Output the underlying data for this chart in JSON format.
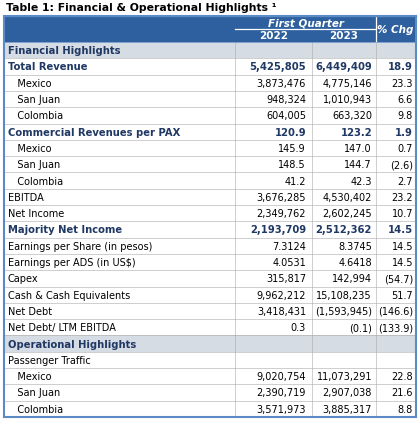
{
  "title": "Table 1: Financial & Operational Highlights ¹",
  "header_main": "First Quarter",
  "col1": "2022",
  "col2": "2023",
  "col3": "% Chg",
  "header_bg": "#2E5F9E",
  "header_text": "#FFFFFF",
  "section_bg": "#D6DCE4",
  "section_text": "#1F3864",
  "bold_row_text": "#1F3864",
  "normal_row_text": "#000000",
  "border_color": "#5B8AC5",
  "rows": [
    {
      "label": "Financial Highlights",
      "v2022": "",
      "v2023": "",
      "vchg": "",
      "type": "section"
    },
    {
      "label": "Total Revenue",
      "v2022": "5,425,805",
      "v2023": "6,449,409",
      "vchg": "18.9",
      "type": "bold"
    },
    {
      "label": "   Mexico",
      "v2022": "3,873,476",
      "v2023": "4,775,146",
      "vchg": "23.3",
      "type": "normal"
    },
    {
      "label": "   San Juan",
      "v2022": "948,324",
      "v2023": "1,010,943",
      "vchg": "6.6",
      "type": "normal"
    },
    {
      "label": "   Colombia",
      "v2022": "604,005",
      "v2023": "663,320",
      "vchg": "9.8",
      "type": "normal"
    },
    {
      "label": "Commercial Revenues per PAX",
      "v2022": "120.9",
      "v2023": "123.2",
      "vchg": "1.9",
      "type": "bold"
    },
    {
      "label": "   Mexico",
      "v2022": "145.9",
      "v2023": "147.0",
      "vchg": "0.7",
      "type": "normal"
    },
    {
      "label": "   San Juan",
      "v2022": "148.5",
      "v2023": "144.7",
      "vchg": "(2.6)",
      "type": "normal"
    },
    {
      "label": "   Colombia",
      "v2022": "41.2",
      "v2023": "42.3",
      "vchg": "2.7",
      "type": "normal"
    },
    {
      "label": "EBITDA",
      "v2022": "3,676,285",
      "v2023": "4,530,402",
      "vchg": "23.2",
      "type": "normal"
    },
    {
      "label": "Net Income",
      "v2022": "2,349,762",
      "v2023": "2,602,245",
      "vchg": "10.7",
      "type": "normal"
    },
    {
      "label": "Majority Net Income",
      "v2022": "2,193,709",
      "v2023": "2,512,362",
      "vchg": "14.5",
      "type": "bold"
    },
    {
      "label": "Earnings per Share (in pesos)",
      "v2022": "7.3124",
      "v2023": "8.3745",
      "vchg": "14.5",
      "type": "normal"
    },
    {
      "label": "Earnings per ADS (in US$)",
      "v2022": "4.0531",
      "v2023": "4.6418",
      "vchg": "14.5",
      "type": "normal"
    },
    {
      "label": "Capex",
      "v2022": "315,817",
      "v2023": "142,994",
      "vchg": "(54.7)",
      "type": "normal"
    },
    {
      "label": "Cash & Cash Equivalents",
      "v2022": "9,962,212",
      "v2023": "15,108,235",
      "vchg": "51.7",
      "type": "normal"
    },
    {
      "label": "Net Debt",
      "v2022": "3,418,431",
      "v2023": "(1,593,945)",
      "vchg": "(146.6)",
      "type": "normal"
    },
    {
      "label": "Net Debt/ LTM EBITDA",
      "v2022": "0.3",
      "v2023": "(0.1)",
      "vchg": "(133.9)",
      "type": "normal"
    },
    {
      "label": "Operational Highlights",
      "v2022": "",
      "v2023": "",
      "vchg": "",
      "type": "section"
    },
    {
      "label": "Passenger Traffic",
      "v2022": "",
      "v2023": "",
      "vchg": "",
      "type": "normal"
    },
    {
      "label": "   Mexico",
      "v2022": "9,020,754",
      "v2023": "11,073,291",
      "vchg": "22.8",
      "type": "normal"
    },
    {
      "label": "   San Juan",
      "v2022": "2,390,719",
      "v2023": "2,907,038",
      "vchg": "21.6",
      "type": "normal"
    },
    {
      "label": "   Colombia",
      "v2022": "3,571,973",
      "v2023": "3,885,317",
      "vchg": "8.8",
      "type": "normal"
    }
  ]
}
